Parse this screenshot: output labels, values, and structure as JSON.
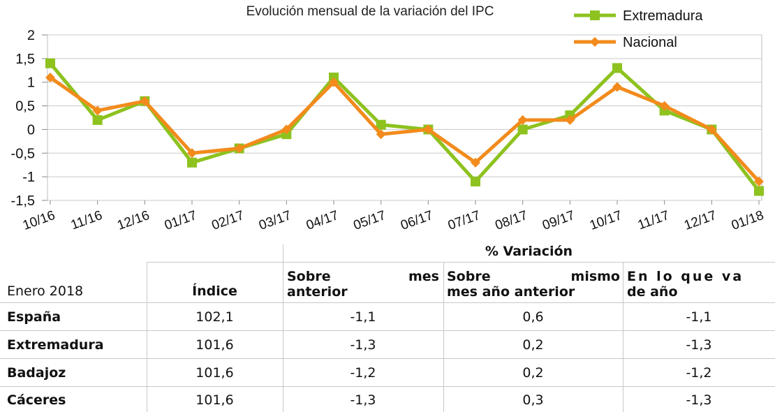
{
  "chart_data": {
    "type": "line",
    "title": "Evolución mensual de la variación del IPC",
    "categories": [
      "10/16",
      "11/16",
      "12/16",
      "01/17",
      "02/17",
      "03/17",
      "04/17",
      "05/17",
      "06/17",
      "07/17",
      "08/17",
      "09/17",
      "10/17",
      "11/17",
      "12/17",
      "01/18"
    ],
    "ylim": [
      -1.5,
      2
    ],
    "yticks": [
      "2",
      "1,5",
      "1",
      "0,5",
      "0",
      "-0,5",
      "-1",
      "-1,5"
    ],
    "ytick_values": [
      2,
      1.5,
      1,
      0.5,
      0,
      -0.5,
      -1,
      -1.5
    ],
    "grid": true,
    "legend_position": "top-right",
    "series": [
      {
        "name": "Extremadura",
        "color": "#8dc21f",
        "marker": "square",
        "values": [
          1.4,
          0.2,
          0.6,
          -0.7,
          -0.4,
          -0.1,
          1.1,
          0.1,
          0.0,
          -1.1,
          0.0,
          0.3,
          1.3,
          0.4,
          0.0,
          -1.3
        ]
      },
      {
        "name": "Nacional",
        "color": "#f28b1c",
        "marker": "diamond",
        "values": [
          1.1,
          0.4,
          0.6,
          -0.5,
          -0.4,
          0.0,
          1.0,
          -0.1,
          0.0,
          -0.7,
          0.2,
          0.2,
          0.9,
          0.5,
          0.0,
          -1.1
        ]
      }
    ]
  },
  "table": {
    "group_header": "% Variación",
    "col_headers": {
      "region": "Enero 2018",
      "index": "Índice",
      "prev_month_a": "Sobre",
      "prev_month_b": "mes",
      "prev_month_c": "anterior",
      "same_month_a": "Sobre",
      "same_month_b": "mismo",
      "same_month_c": "mes año anterior",
      "ytd_a": "En lo que va",
      "ytd_b": "de año"
    },
    "rows": [
      {
        "region": "España",
        "index": "102,1",
        "prev_month": "-1,1",
        "same_month": "0,6",
        "ytd": "-1,1"
      },
      {
        "region": "Extremadura",
        "index": "101,6",
        "prev_month": "-1,3",
        "same_month": "0,2",
        "ytd": "-1,3"
      },
      {
        "region": "Badajoz",
        "index": "101,6",
        "prev_month": "-1,2",
        "same_month": "0,2",
        "ytd": "-1,2"
      },
      {
        "region": "Cáceres",
        "index": "101,6",
        "prev_month": "-1,3",
        "same_month": "0,3",
        "ytd": "-1,3"
      }
    ]
  }
}
